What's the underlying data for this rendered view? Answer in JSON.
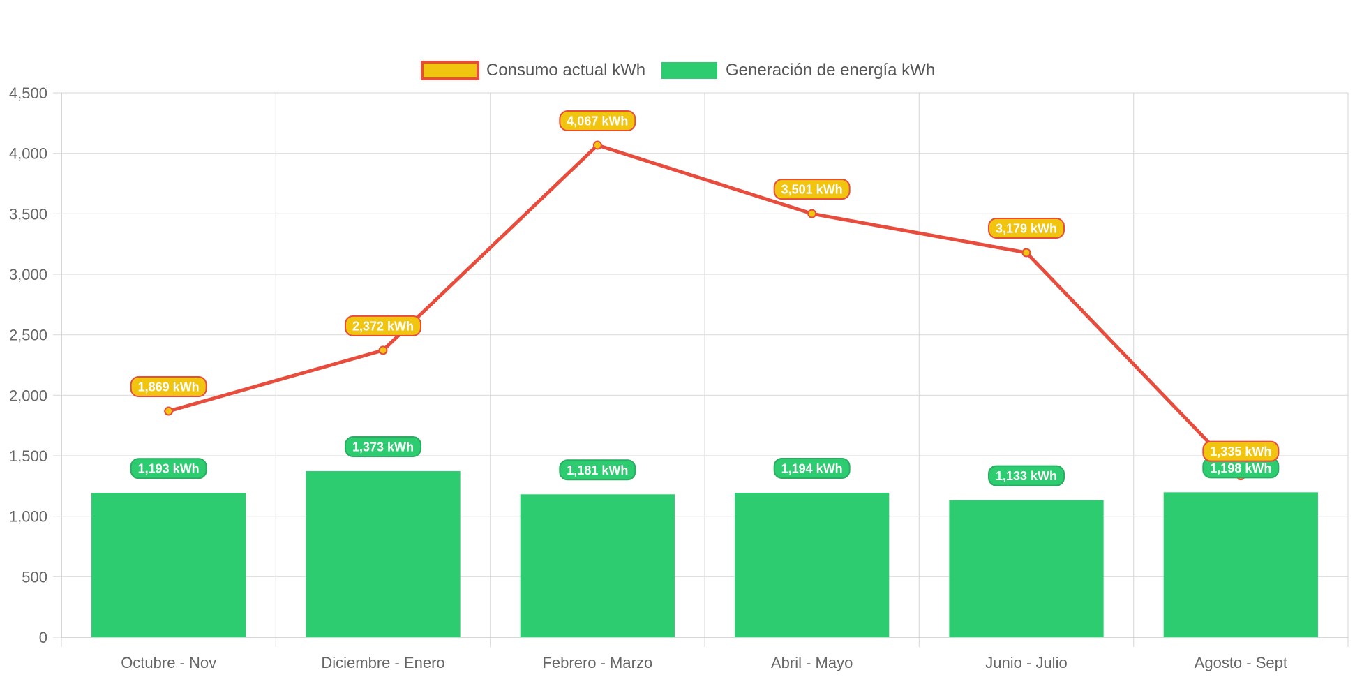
{
  "chart_data": {
    "type": "bar",
    "categories": [
      "Octubre - Nov",
      "Diciembre - Enero",
      "Febrero - Marzo",
      "Abril - Mayo",
      "Junio - Julio",
      "Agosto - Sept"
    ],
    "series": [
      {
        "name": "Consumo actual kWh",
        "type": "line",
        "values": [
          1869,
          2372,
          4067,
          3501,
          3179,
          1335
        ],
        "labels": [
          "1,869 kWh",
          "2,372 kWh",
          "4,067 kWh",
          "3,501 kWh",
          "3,179 kWh",
          "1,335 kWh"
        ],
        "color": "#e74c3c",
        "fill_color": "#f1c40f"
      },
      {
        "name": "Generación de energía kWh",
        "type": "bar",
        "values": [
          1193,
          1373,
          1181,
          1194,
          1133,
          1198
        ],
        "labels": [
          "1,193 kWh",
          "1,373 kWh",
          "1,181 kWh",
          "1,194 kWh",
          "1,133 kWh",
          "1,198 kWh"
        ],
        "color": "#2ecc71"
      }
    ],
    "ylim": [
      0,
      4500
    ],
    "yticks": [
      0,
      500,
      1000,
      1500,
      2000,
      2500,
      3000,
      3500,
      4000,
      4500
    ],
    "ytick_labels": [
      "0",
      "500",
      "1,000",
      "1,500",
      "2,000",
      "2,500",
      "3,000",
      "3,500",
      "4,000",
      "4,500"
    ],
    "grid": true,
    "legend_position": "top-center"
  }
}
